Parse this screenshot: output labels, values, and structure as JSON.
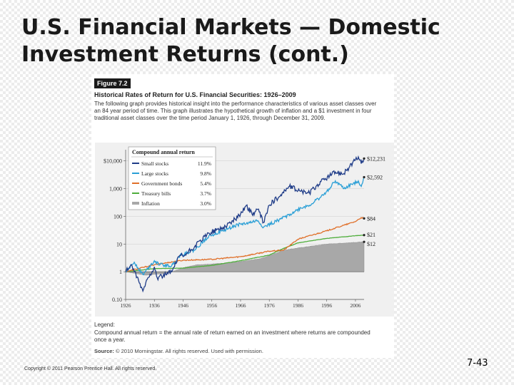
{
  "slide": {
    "title_line1": "U.S. Financial Markets — Domestic",
    "title_line2": "Investment Returns (cont.)",
    "copyright": "Copyright © 2011 Pearson Prentice Hall. All rights reserved.",
    "page_number": "7-43"
  },
  "figure": {
    "tag": "Figure 7.2",
    "title": "Historical Rates of Return for U.S. Financial Securities: 1926–2009",
    "caption": "The following graph provides historical insight into the performance characteristics of various asset classes over an 84 year period of time. This graph illustrates the hypothetical growth of inflation and a $1 investment in four traditional asset classes over the time period January 1, 1926, through December 31, 2009.",
    "legend_heading": "Legend:",
    "legend_text": "Compound annual return = the annual rate of return earned on an investment where returns are compounded once a year.",
    "source_label": "Source:",
    "source_text": "© 2010 Morningstar. All rights reserved. Used with permission."
  },
  "chart_data": {
    "type": "line",
    "y_scale": "log",
    "ylim": [
      0.1,
      20000
    ],
    "xlim": [
      1926,
      2009
    ],
    "y_ticks": [
      {
        "value": 10000,
        "label": "$10,000"
      },
      {
        "value": 1000,
        "label": "1,000"
      },
      {
        "value": 100,
        "label": "100"
      },
      {
        "value": 10,
        "label": "10"
      },
      {
        "value": 1,
        "label": "1"
      },
      {
        "value": 0.1,
        "label": "0.10"
      }
    ],
    "x_ticks": [
      1926,
      1936,
      1946,
      1956,
      1966,
      1976,
      1986,
      1996,
      2006
    ],
    "legend_title": "Compound annual return",
    "legend_placement": "top-left",
    "series": [
      {
        "name": "Small stocks",
        "cagr": "11.9%",
        "end_label": "$12,231",
        "color": "#1f3c88",
        "style": "line",
        "points": [
          [
            1926,
            1
          ],
          [
            1928,
            1.8
          ],
          [
            1929,
            1.0
          ],
          [
            1932,
            0.2
          ],
          [
            1933,
            0.4
          ],
          [
            1936,
            1.5
          ],
          [
            1937,
            0.6
          ],
          [
            1940,
            0.8
          ],
          [
            1942,
            1.0
          ],
          [
            1945,
            4
          ],
          [
            1946,
            3.5
          ],
          [
            1950,
            8
          ],
          [
            1955,
            25
          ],
          [
            1960,
            40
          ],
          [
            1965,
            90
          ],
          [
            1968,
            250
          ],
          [
            1970,
            120
          ],
          [
            1972,
            180
          ],
          [
            1974,
            60
          ],
          [
            1976,
            250
          ],
          [
            1980,
            600
          ],
          [
            1983,
            1200
          ],
          [
            1987,
            800
          ],
          [
            1990,
            700
          ],
          [
            1994,
            1800
          ],
          [
            1999,
            4000
          ],
          [
            2002,
            3500
          ],
          [
            2006,
            11000
          ],
          [
            2007,
            14000
          ],
          [
            2008,
            8000
          ],
          [
            2009,
            12231
          ]
        ]
      },
      {
        "name": "Large stocks",
        "cagr": "9.8%",
        "end_label": "$2,592",
        "color": "#2a9fd6",
        "style": "line",
        "points": [
          [
            1926,
            1
          ],
          [
            1929,
            2.2
          ],
          [
            1932,
            0.8
          ],
          [
            1936,
            2.5
          ],
          [
            1938,
            1.8
          ],
          [
            1942,
            1.6
          ],
          [
            1945,
            4
          ],
          [
            1950,
            6
          ],
          [
            1955,
            20
          ],
          [
            1960,
            30
          ],
          [
            1965,
            50
          ],
          [
            1968,
            55
          ],
          [
            1972,
            70
          ],
          [
            1974,
            40
          ],
          [
            1980,
            80
          ],
          [
            1985,
            150
          ],
          [
            1987,
            200
          ],
          [
            1990,
            250
          ],
          [
            1995,
            600
          ],
          [
            1999,
            1900
          ],
          [
            2002,
            1000
          ],
          [
            2007,
            1900
          ],
          [
            2008,
            1200
          ],
          [
            2009,
            2592
          ]
        ]
      },
      {
        "name": "Government bonds",
        "cagr": "5.4%",
        "end_label": "$84",
        "color": "#e0702a",
        "style": "line",
        "points": [
          [
            1926,
            1
          ],
          [
            1936,
            1.8
          ],
          [
            1946,
            2.6
          ],
          [
            1956,
            2.8
          ],
          [
            1966,
            3.5
          ],
          [
            1976,
            5.5
          ],
          [
            1981,
            6
          ],
          [
            1986,
            15
          ],
          [
            1996,
            30
          ],
          [
            2006,
            65
          ],
          [
            2008,
            90
          ],
          [
            2009,
            84
          ]
        ]
      },
      {
        "name": "Treasury bills",
        "cagr": "3.7%",
        "end_label": "$21",
        "color": "#4fae3c",
        "style": "line",
        "points": [
          [
            1926,
            1
          ],
          [
            1936,
            1.3
          ],
          [
            1946,
            1.35
          ],
          [
            1956,
            1.7
          ],
          [
            1966,
            2.5
          ],
          [
            1976,
            4
          ],
          [
            1981,
            7
          ],
          [
            1986,
            11
          ],
          [
            1996,
            16
          ],
          [
            2006,
            20
          ],
          [
            2009,
            21
          ]
        ]
      },
      {
        "name": "Inflation",
        "cagr": "3.0%",
        "end_label": "$12",
        "color": "#a8a8a8",
        "style": "area",
        "points": [
          [
            1926,
            1
          ],
          [
            1933,
            0.75
          ],
          [
            1941,
            0.9
          ],
          [
            1946,
            1.4
          ],
          [
            1951,
            1.8
          ],
          [
            1956,
            1.9
          ],
          [
            1966,
            2.3
          ],
          [
            1973,
            3
          ],
          [
            1976,
            3.8
          ],
          [
            1981,
            6
          ],
          [
            1986,
            7.2
          ],
          [
            1996,
            10
          ],
          [
            2006,
            11.5
          ],
          [
            2009,
            12
          ]
        ]
      }
    ]
  }
}
